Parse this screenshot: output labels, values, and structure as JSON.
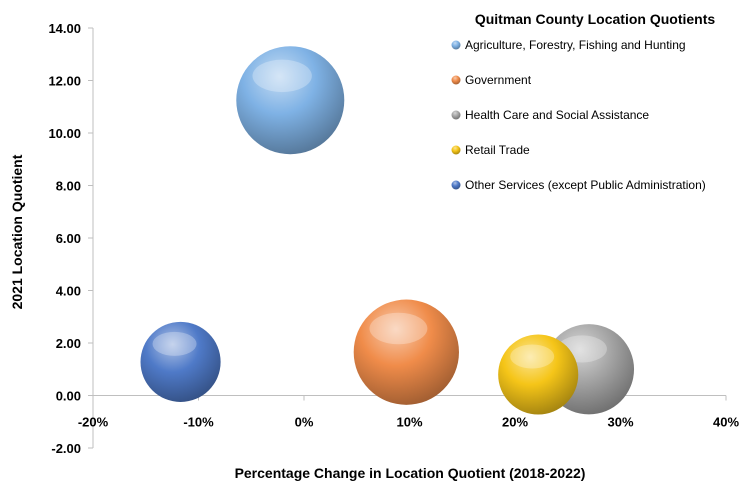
{
  "chart_data": {
    "type": "bubble",
    "title": "Quitman County Location Quotients",
    "xlabel": "Percentage Change in Location Quotient (2018-2022)",
    "ylabel": "2021 Location Quotient",
    "xlim": [
      -0.2,
      0.4
    ],
    "ylim": [
      -2.0,
      14.0
    ],
    "x_ticks": [
      -0.2,
      -0.1,
      0.0,
      0.1,
      0.2,
      0.3,
      0.4
    ],
    "x_tick_labels": [
      "-20%",
      "-10%",
      "0%",
      "10%",
      "20%",
      "30%",
      "40%"
    ],
    "y_ticks": [
      -2,
      0,
      2,
      4,
      6,
      8,
      10,
      12,
      14
    ],
    "y_tick_labels": [
      "-2.00",
      "0.00",
      "2.00",
      "4.00",
      "6.00",
      "8.00",
      "10.00",
      "12.00",
      "14.00"
    ],
    "grid": false,
    "legend_position": "top-right",
    "series": [
      {
        "name": "Agriculture, Forestry, Fishing and Hunting",
        "x": -0.013,
        "y": 11.25,
        "size": 1.0,
        "color": "#7fb2e5"
      },
      {
        "name": "Government",
        "x": 0.097,
        "y": 1.65,
        "size": 0.95,
        "color": "#f08c4a"
      },
      {
        "name": "Health Care and Social Assistance",
        "x": 0.27,
        "y": 1.0,
        "size": 0.7,
        "color": "#a6a6a6"
      },
      {
        "name": "Retail Trade",
        "x": 0.222,
        "y": 0.8,
        "size": 0.55,
        "color": "#f5c518"
      },
      {
        "name": "Other Services (except Public Administration)",
        "x": -0.117,
        "y": 1.28,
        "size": 0.55,
        "color": "#4f7ac8"
      }
    ]
  }
}
